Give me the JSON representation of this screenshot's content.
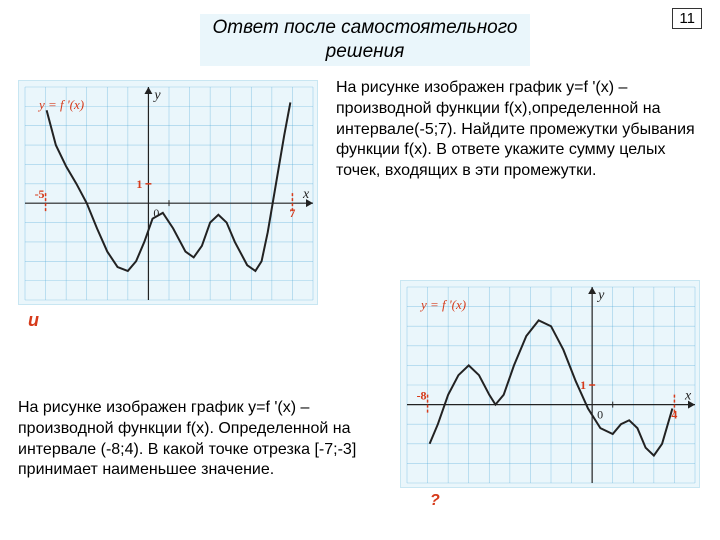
{
  "page_number": "11",
  "title": "Ответ после самостоятельного решения",
  "marker_u": "и",
  "marker_q": "?",
  "chart1": {
    "func_label": "y = f '(x)",
    "bg": "#eaf6fb",
    "grid_color": "#4aa6d6",
    "axis_color": "#222222",
    "curve_color": "#222222",
    "x_axis_label": "x",
    "y_axis_label": "y",
    "origin_label": "0",
    "x_min_label": "-5",
    "x_max_label": "7",
    "y_tick_label": "1",
    "xlim": [
      -6,
      8
    ],
    "ylim": [
      -5,
      6
    ],
    "grid_step": 1,
    "red_dash_x": [
      -5,
      7
    ],
    "curve_points": [
      [
        -4.95,
        4.8
      ],
      [
        -4.5,
        3.0
      ],
      [
        -4.0,
        1.9
      ],
      [
        -3.5,
        1.0
      ],
      [
        -3.0,
        0.0
      ],
      [
        -2.5,
        -1.3
      ],
      [
        -2.0,
        -2.5
      ],
      [
        -1.5,
        -3.3
      ],
      [
        -1.0,
        -3.5
      ],
      [
        -0.6,
        -3.0
      ],
      [
        -0.2,
        -2.0
      ],
      [
        0.2,
        -0.8
      ],
      [
        0.7,
        -0.5
      ],
      [
        1.2,
        -1.3
      ],
      [
        1.8,
        -2.5
      ],
      [
        2.2,
        -2.8
      ],
      [
        2.6,
        -2.2
      ],
      [
        3.0,
        -1.0
      ],
      [
        3.4,
        -0.6
      ],
      [
        3.8,
        -1.0
      ],
      [
        4.2,
        -2.0
      ],
      [
        4.8,
        -3.2
      ],
      [
        5.2,
        -3.5
      ],
      [
        5.5,
        -3.0
      ],
      [
        5.8,
        -1.5
      ],
      [
        6.2,
        1.0
      ],
      [
        6.6,
        3.5
      ],
      [
        6.9,
        5.2
      ]
    ]
  },
  "desc1": "На рисунке изображен график y=f '(x) – производной функции f(x),определенной на интервале(-5;7). Найдите промежутки убывания функции f(x). В ответе укажите сумму целых точек, входящих в эти промежутки.",
  "chart2": {
    "func_label": "y = f '(x)",
    "bg": "#eaf6fb",
    "grid_color": "#4aa6d6",
    "axis_color": "#222222",
    "curve_color": "#222222",
    "x_axis_label": "x",
    "y_axis_label": "y",
    "origin_label": "0",
    "x_min_label": "-8",
    "x_max_label": "4",
    "y_tick_label": "1",
    "xlim": [
      -9,
      5
    ],
    "ylim": [
      -4,
      6
    ],
    "grid_step": 1,
    "red_dash_x": [
      -8,
      4
    ],
    "curve_points": [
      [
        -7.9,
        -2.0
      ],
      [
        -7.5,
        -1.0
      ],
      [
        -7.0,
        0.5
      ],
      [
        -6.5,
        1.5
      ],
      [
        -6.0,
        2.0
      ],
      [
        -5.5,
        1.5
      ],
      [
        -5.0,
        0.5
      ],
      [
        -4.7,
        0.0
      ],
      [
        -4.3,
        0.5
      ],
      [
        -3.8,
        2.0
      ],
      [
        -3.2,
        3.5
      ],
      [
        -2.6,
        4.3
      ],
      [
        -2.0,
        4.0
      ],
      [
        -1.4,
        2.8
      ],
      [
        -0.8,
        1.2
      ],
      [
        -0.2,
        -0.2
      ],
      [
        0.4,
        -1.2
      ],
      [
        1.0,
        -1.5
      ],
      [
        1.4,
        -1.0
      ],
      [
        1.8,
        -0.8
      ],
      [
        2.2,
        -1.2
      ],
      [
        2.6,
        -2.2
      ],
      [
        3.0,
        -2.6
      ],
      [
        3.4,
        -2.0
      ],
      [
        3.9,
        -0.2
      ]
    ]
  },
  "desc2": "На рисунке изображен график y=f '(x) – производной функции f(x). Определенной на интервале (-8;4). В какой точке отрезка [-7;-3] принимает наименьшее значение."
}
